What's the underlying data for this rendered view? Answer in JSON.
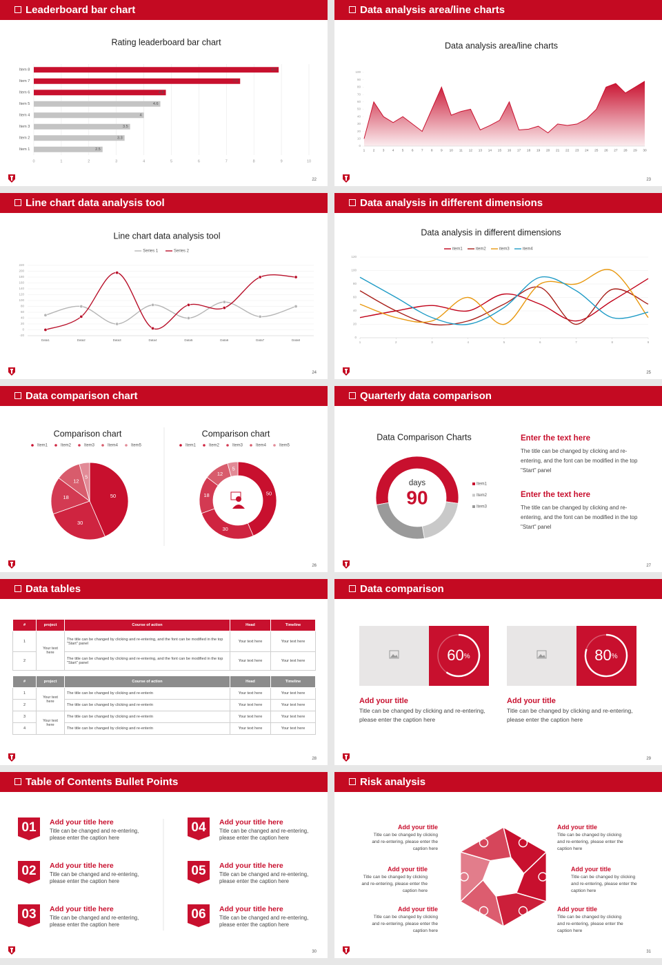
{
  "slides": [
    {
      "title": "Leaderboard bar chart",
      "page": 22
    },
    {
      "title": "Data analysis area/line charts",
      "page": 23
    },
    {
      "title": "Line chart data analysis tool",
      "page": 24
    },
    {
      "title": "Data analysis in different dimensions",
      "page": 25
    },
    {
      "title": "Data comparison chart",
      "page": 26
    },
    {
      "title": "Quarterly data comparison",
      "page": 27
    },
    {
      "title": "Data tables",
      "page": 28
    },
    {
      "title": "Data comparison",
      "page": 29
    },
    {
      "title": "Table of Contents Bullet Points",
      "page": 30
    },
    {
      "title": "Risk analysis",
      "page": 31
    }
  ],
  "chart_data": [
    {
      "type": "bar",
      "orientation": "horizontal",
      "title": "Rating leaderboard bar chart",
      "categories": [
        "Item 8",
        "Item 7",
        "Item 6",
        "Item 5",
        "Item 4",
        "Item 3",
        "Item 2",
        "Item 1"
      ],
      "values": [
        8.9,
        7.5,
        4.8,
        4.6,
        4,
        3.5,
        3.3,
        2.5
      ],
      "colors": [
        "#c8102e",
        "#c8102e",
        "#c8102e",
        "#c4c4c4",
        "#c4c4c4",
        "#c4c4c4",
        "#c4c4c4",
        "#c4c4c4"
      ],
      "xlim": [
        0,
        10
      ],
      "xticks": [
        0,
        1,
        2,
        3,
        4,
        5,
        6,
        7,
        8,
        9,
        10
      ],
      "grid": true
    },
    {
      "type": "area",
      "title": "Data analysis area/line charts",
      "categories": [
        1,
        2,
        3,
        4,
        5,
        6,
        7,
        8,
        9,
        10,
        11,
        12,
        13,
        14,
        15,
        16,
        17,
        18,
        19,
        20,
        21,
        22,
        23,
        24,
        25,
        26,
        27,
        28,
        29,
        30
      ],
      "values": [
        10,
        60,
        40,
        32,
        40,
        30,
        20,
        50,
        80,
        42,
        47,
        50,
        22,
        28,
        35,
        60,
        22,
        23,
        27,
        18,
        30,
        28,
        30,
        37,
        50,
        80,
        85,
        72,
        80,
        88
      ],
      "color": "#c8102e",
      "ylim": [
        0,
        100
      ],
      "yticks": [
        0,
        10,
        20,
        30,
        40,
        50,
        60,
        70,
        80,
        90,
        100
      ],
      "grid": false
    },
    {
      "type": "line",
      "title": "Line chart data analysis tool",
      "categories": [
        "Data1",
        "Data2",
        "Data3",
        "Data4",
        "Data5",
        "Data6",
        "Data7",
        "Data8"
      ],
      "series": [
        {
          "name": "Series 1",
          "color": "#b5b5b5",
          "values": [
            50,
            80,
            20,
            85,
            40,
            95,
            45,
            80
          ]
        },
        {
          "name": "Series 2",
          "color": "#b8102a",
          "values": [
            0,
            45,
            195,
            5,
            85,
            75,
            180,
            180
          ]
        }
      ],
      "ylim": [
        -20,
        220
      ],
      "yticks": [
        -20,
        0,
        20,
        40,
        60,
        80,
        100,
        120,
        140,
        160,
        180,
        200,
        220
      ],
      "grid": true,
      "markers": true
    },
    {
      "type": "line",
      "title": "Data analysis in different dimensions",
      "x": [
        1,
        2,
        3,
        4,
        5,
        6,
        7,
        8,
        9
      ],
      "series": [
        {
          "name": "item1",
          "color": "#c00018",
          "values": [
            30,
            40,
            48,
            40,
            65,
            50,
            25,
            55,
            88
          ]
        },
        {
          "name": "item2",
          "color": "#a8201a",
          "values": [
            70,
            40,
            20,
            25,
            50,
            75,
            20,
            72,
            50
          ]
        },
        {
          "name": "item3",
          "color": "#e8980f",
          "values": [
            50,
            30,
            25,
            60,
            20,
            80,
            80,
            100,
            30
          ]
        },
        {
          "name": "item4",
          "color": "#1f9bc6",
          "values": [
            90,
            60,
            30,
            20,
            45,
            90,
            70,
            30,
            38
          ]
        }
      ],
      "xlim": [
        1,
        9
      ],
      "xticks": [
        1,
        2,
        3,
        4,
        5,
        6,
        7,
        8,
        9
      ],
      "ylim": [
        0,
        120
      ],
      "yticks": [
        0,
        20,
        40,
        60,
        80,
        100,
        120
      ],
      "grid": true,
      "markers": false
    },
    {
      "type": "pie",
      "title": "Comparison chart",
      "categories": [
        "Item1",
        "Item2",
        "Item3",
        "Item4",
        "Item5"
      ],
      "values": [
        50,
        30,
        18,
        12,
        5
      ],
      "colors": [
        "#c8102e",
        "#cf2440",
        "#d33a52",
        "#d85c6c",
        "#e28a96"
      ],
      "data_labels": true,
      "legend": "top"
    },
    {
      "type": "donut",
      "title": "Comparison chart",
      "categories": [
        "Item1",
        "Item2",
        "Item3",
        "Item4",
        "Item5"
      ],
      "values": [
        50,
        30,
        18,
        12,
        5
      ],
      "colors": [
        "#c8102e",
        "#cf2440",
        "#d33a52",
        "#d85c6c",
        "#e28a96"
      ],
      "data_labels": true,
      "legend": "top"
    },
    {
      "type": "donut",
      "title": "Data Comparison Charts",
      "categories": [
        "Item1",
        "Item2",
        "Item3"
      ],
      "values": [
        55,
        20,
        25
      ],
      "colors": [
        "#c8102e",
        "#c9c9c9",
        "#9a9a9a"
      ],
      "data_labels": false,
      "legend": "right",
      "center_label": "days",
      "center_value": "90"
    }
  ],
  "quarterly": {
    "blocks": [
      {
        "heading": "Enter the text here",
        "text": "The title can be changed by clicking and re-entering, and the font can be modified in the top \"Start\" panel"
      },
      {
        "heading": "Enter the text here",
        "text": "The title can be changed by clicking and re-entering, and the font can be modified in the top \"Start\" panel"
      }
    ]
  },
  "tables": [
    {
      "header": [
        "#",
        "project",
        "Course of action",
        "Head",
        "Timeline"
      ],
      "groups": [
        {
          "project": "Your text here",
          "rows": [
            [
              "1",
              "The title can be changed by clicking and re-entering, and the font can be modified in the top \"Start\" panel",
              "Your text here",
              "Your text here"
            ],
            [
              "2",
              "The title can be changed by clicking and re-entering, and the font can be modified in the top \"Start\" panel",
              "Your text here",
              "Your text here"
            ]
          ]
        }
      ]
    },
    {
      "header": [
        "#",
        "project",
        "Course of action",
        "Head",
        "Timeline"
      ],
      "groups": [
        {
          "project": "Your text here",
          "rows": [
            [
              "1",
              "The title can be changed by clicking and re-enterin",
              "Your text here",
              "Your text here"
            ],
            [
              "2",
              "The title can be changed by clicking and re-enterin",
              "Your text here",
              "Your text here"
            ]
          ]
        },
        {
          "project": "Your text here",
          "rows": [
            [
              "3",
              "The title can be changed by clicking and re-enterin",
              "Your text here",
              "Your text here"
            ],
            [
              "4",
              "The title can be changed by clicking and re-enterin",
              "Your text here",
              "Your text here"
            ]
          ]
        }
      ]
    }
  ],
  "data_comparison": {
    "cards": [
      {
        "value": 60,
        "unit": "%",
        "title": "Add your title",
        "text": "Title can be changed by clicking and re-entering, please enter the caption here"
      },
      {
        "value": 80,
        "unit": "%",
        "title": "Add your title",
        "text": "Title can be changed by clicking and re-entering, please enter the caption here"
      }
    ]
  },
  "contents": {
    "items": [
      {
        "number": "01",
        "title": "Add your title here",
        "text": "Title can be changed and re-entering, please enter the caption here"
      },
      {
        "number": "02",
        "title": "Add your title here",
        "text": "Title can be changed and re-entering, please enter the caption here"
      },
      {
        "number": "03",
        "title": "Add your title here",
        "text": "Title can be changed and re-entering, please enter the caption here"
      },
      {
        "number": "04",
        "title": "Add your title here",
        "text": "Title can be changed and re-entering, please enter the caption here"
      },
      {
        "number": "05",
        "title": "Add your title here",
        "text": "Title can be changed and re-entering, please enter the caption here"
      },
      {
        "number": "06",
        "title": "Add your title here",
        "text": "Title can be changed and re-entering, please enter the caption here"
      }
    ]
  },
  "risk": {
    "items": [
      {
        "title": "Add your title",
        "text": "Title can be changed by clicking and re-entering, please enter the caption here"
      },
      {
        "title": "Add your title",
        "text": "Title can be changed by clicking and re-entering, please enter the caption here"
      },
      {
        "title": "Add your title",
        "text": "Title can be changed by clicking and re-entering, please enter the caption here"
      },
      {
        "title": "Add your title",
        "text": "Title can be changed by clicking and re-entering, please enter the caption here"
      },
      {
        "title": "Add your title",
        "text": "Title can be changed by clicking and re-entering, please enter the caption here"
      },
      {
        "title": "Add your title",
        "text": "Title can be changed by clicking and re-entering, please enter the caption here"
      }
    ]
  }
}
